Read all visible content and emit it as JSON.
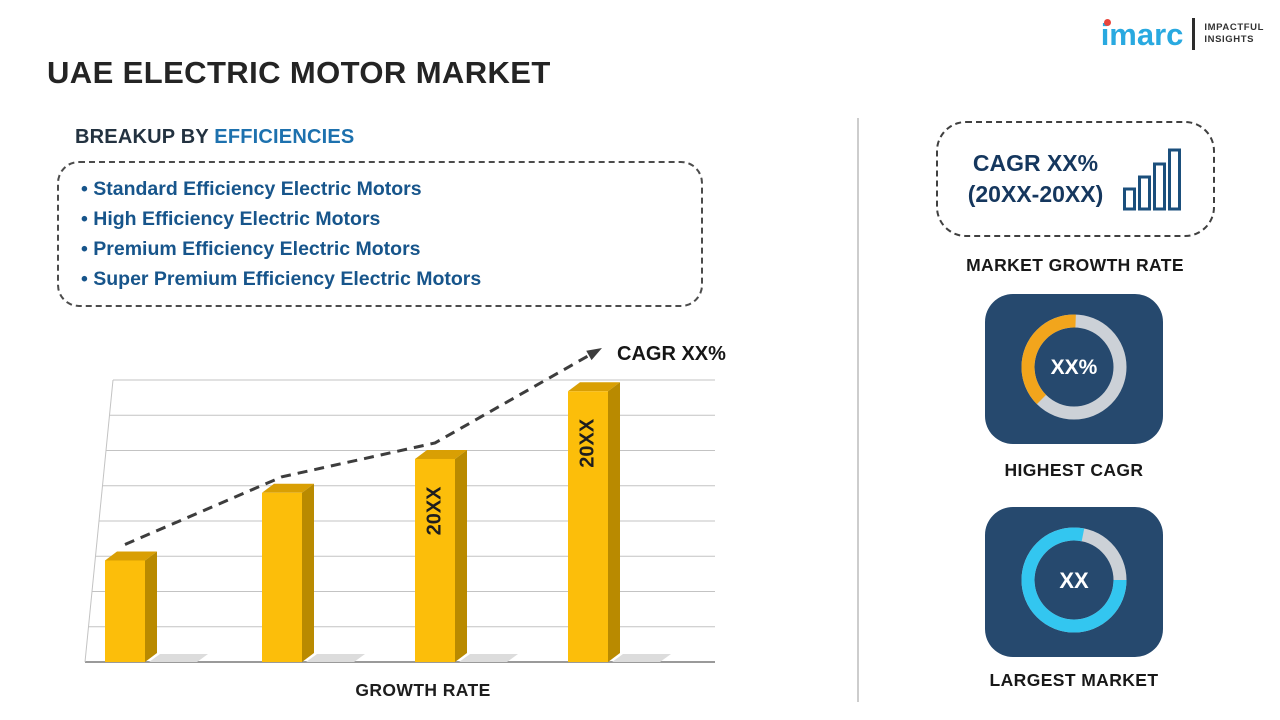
{
  "header": {
    "title": "UAE ELECTRIC MOTOR MARKET"
  },
  "logo": {
    "brand": "imarc",
    "tagline1": "IMPACTFUL",
    "tagline2": "INSIGHTS"
  },
  "breakup": {
    "heading_prefix": "BREAKUP BY",
    "heading_accent": "EFFICIENCIES",
    "items": [
      "Standard Efficiency Electric Motors",
      "High Efficiency Electric Motors",
      "Premium Efficiency Electric Motors",
      "Super Premium Efficiency Electric Motors"
    ]
  },
  "chart_data": {
    "type": "bar",
    "title": "",
    "xlabel": "GROWTH RATE",
    "ylabel": "",
    "categories": [
      "",
      "",
      "20XX",
      "20XX"
    ],
    "values": [
      36,
      60,
      72,
      96
    ],
    "ylim": [
      0,
      100
    ],
    "grid": true,
    "trend_label": "CAGR XX%",
    "trend_style": "dashed-arrow",
    "colors": {
      "front": "#fcbe0a",
      "side": "#b98a00",
      "top": "#d99f04",
      "trend": "#3d3d3d"
    }
  },
  "sidebar": {
    "growth_card": {
      "line1": "CAGR XX%",
      "line2": "(20XX-20XX)",
      "caption": "MARKET GROWTH RATE"
    },
    "highest_cagr_card": {
      "value": "XX%",
      "caption": "HIGHEST CAGR",
      "arc_percent": 38,
      "arc_color": "#f2a51c"
    },
    "largest_market_card": {
      "value": "XX",
      "caption": "LARGEST MARKET",
      "arc_percent": 78,
      "arc_color": "#33c6f0"
    }
  },
  "colors": {
    "accent_blue": "#1d71ae",
    "list_blue": "#17558b",
    "navy_text": "#15375e",
    "card_navy": "#26496e",
    "donut_track_gray": "#ccd1d7",
    "logo_cyan": "#29a9e0"
  }
}
